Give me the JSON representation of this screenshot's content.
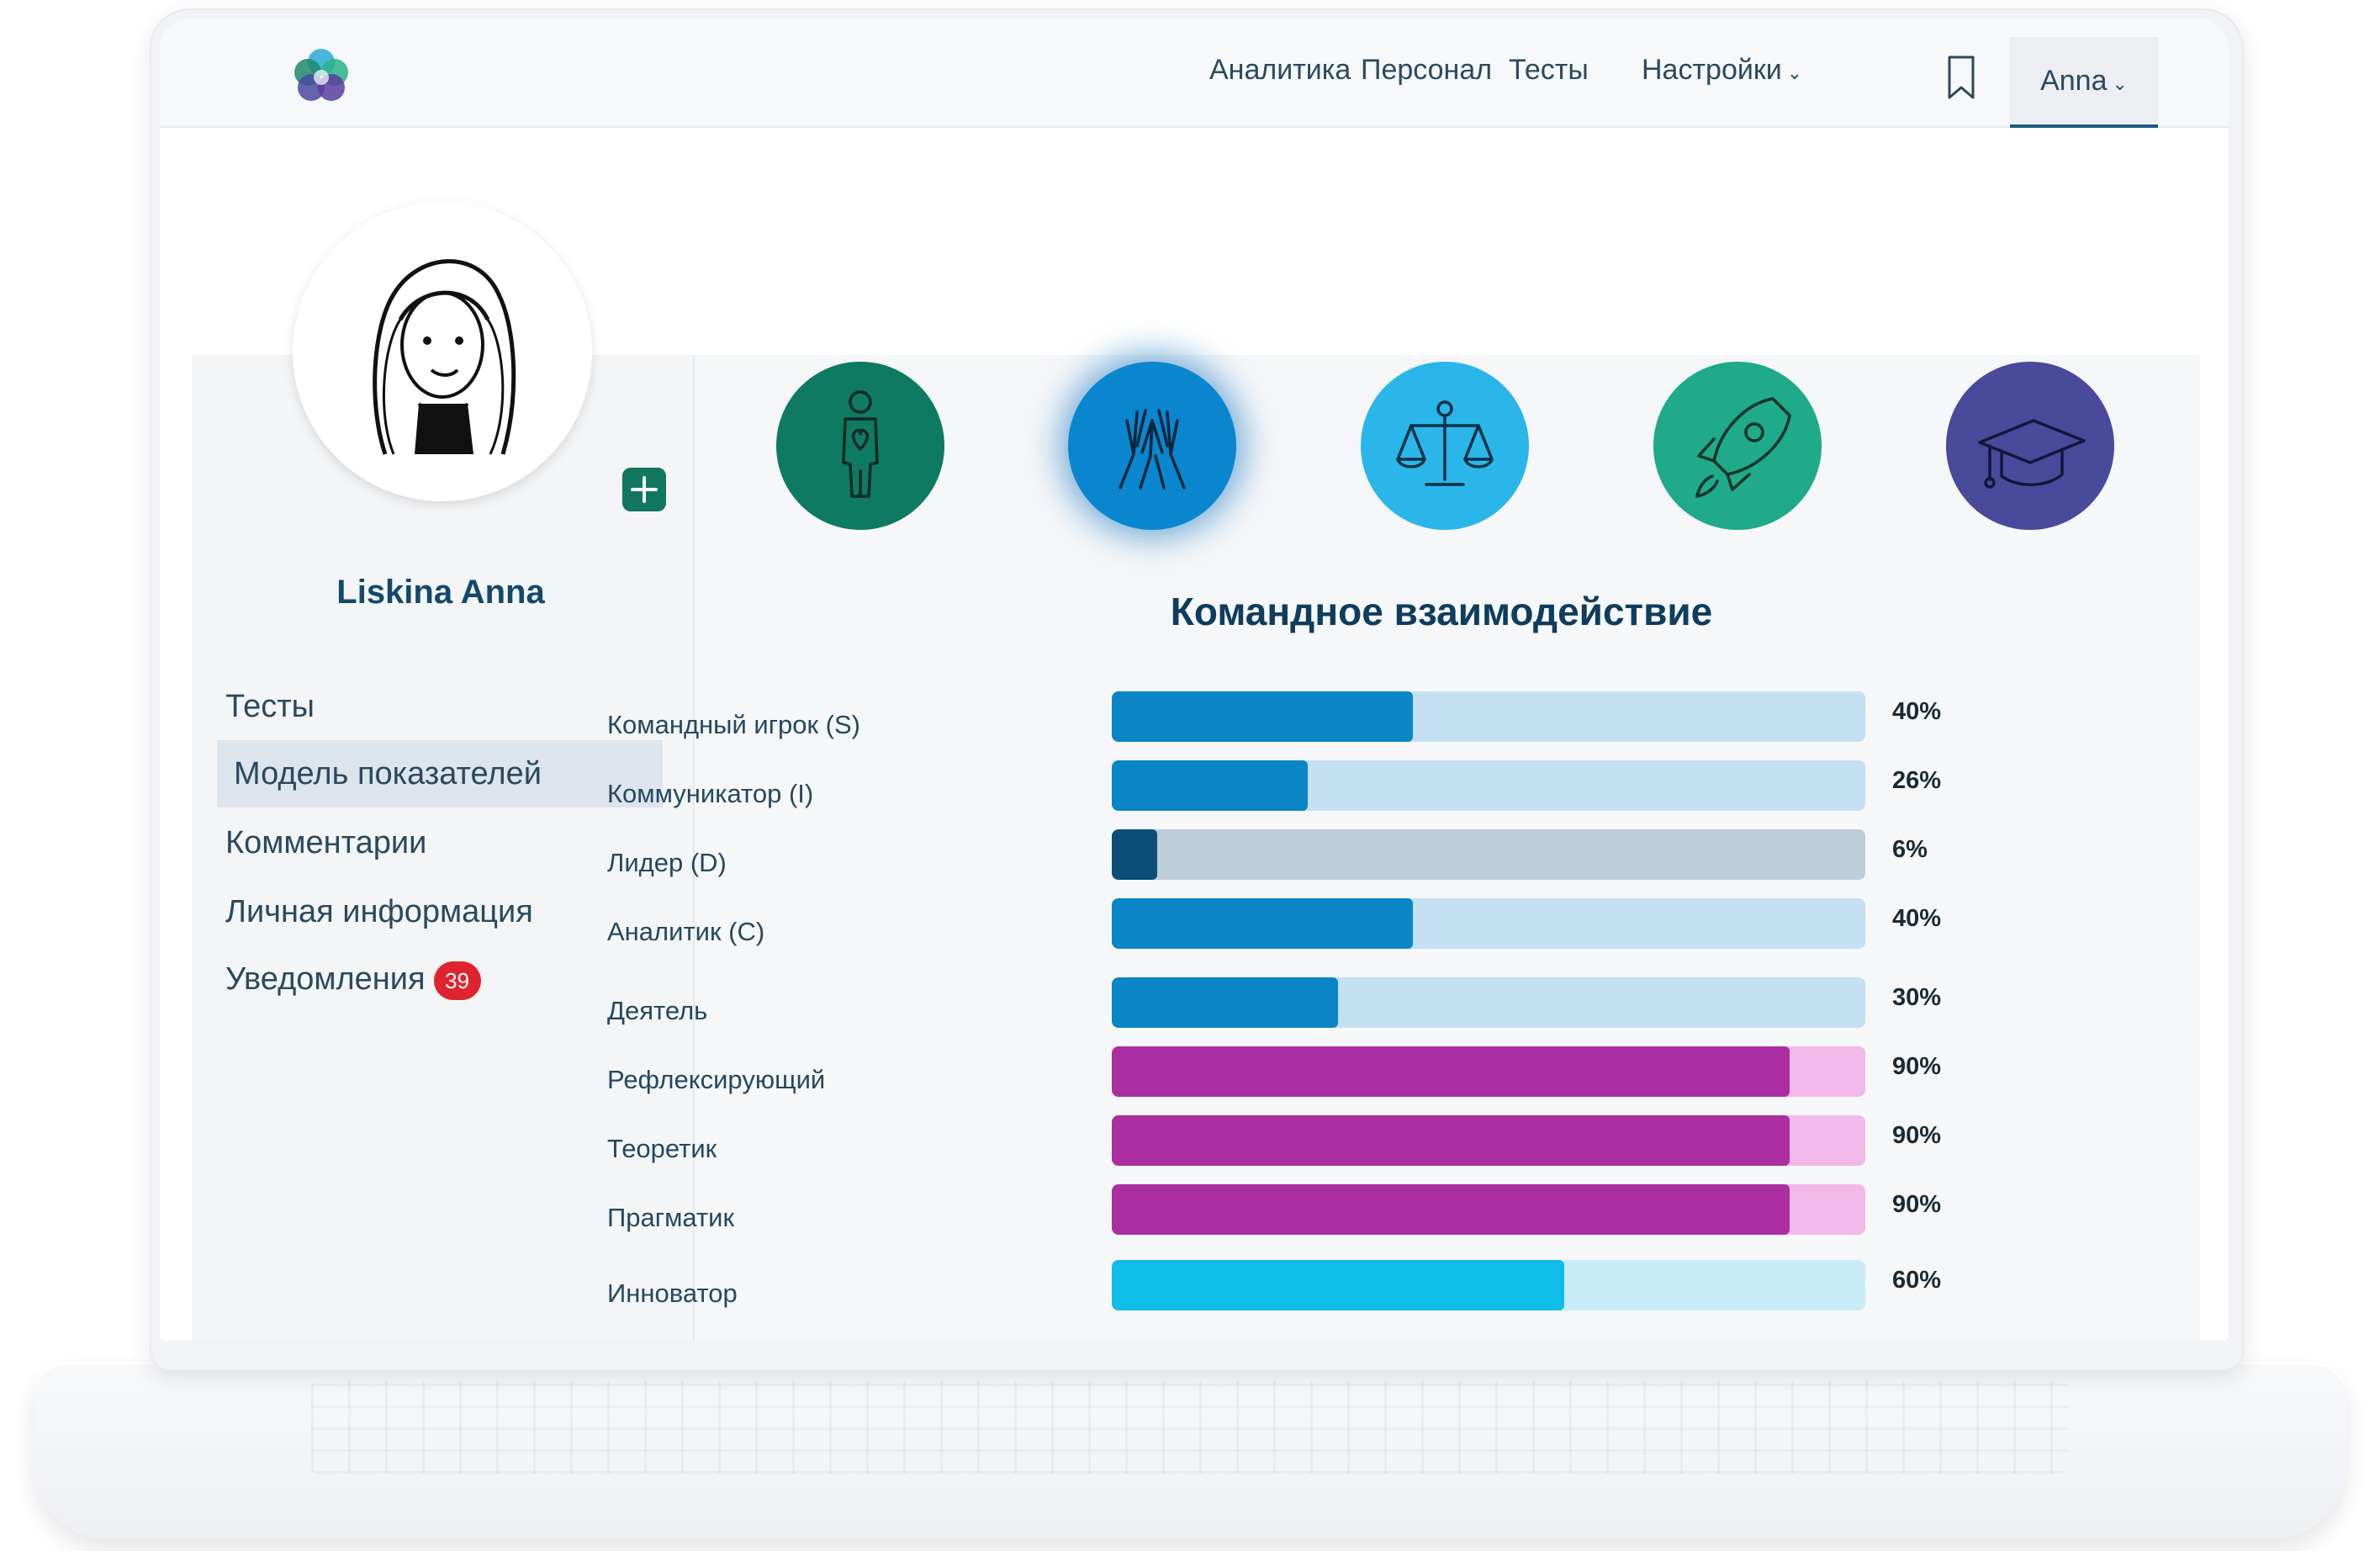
{
  "nav": {
    "items": [
      "Аналитика",
      "Персонал",
      "Тесты",
      "Настройки"
    ],
    "settings_chevron": "⌄",
    "user_label": "Anna",
    "user_chevron": "⌄"
  },
  "profile": {
    "name": "Liskina Anna"
  },
  "sidebar": {
    "items": [
      {
        "label": "Тесты",
        "active": false
      },
      {
        "label": "Модель показателей",
        "active": true
      },
      {
        "label": "Комментарии",
        "active": false
      },
      {
        "label": "Личная информация",
        "active": false
      },
      {
        "label": "Уведомления",
        "active": false,
        "badge": "39"
      }
    ]
  },
  "categories": [
    {
      "icon": "person-heart-icon",
      "color": "#0f7a62",
      "selected": false
    },
    {
      "icon": "high-five-icon",
      "color": "#0a86cf",
      "selected": true
    },
    {
      "icon": "scales-icon",
      "color": "#2bb6ea",
      "selected": false
    },
    {
      "icon": "rocket-icon",
      "color": "#1faa8a",
      "selected": false
    },
    {
      "icon": "graduation-cap-icon",
      "color": "#4a4a9c",
      "selected": false
    }
  ],
  "section": {
    "title": "Командное взаимодействие"
  },
  "metrics": [
    {
      "label": "Командный игрок (S)",
      "value": 40,
      "display": "40%",
      "fill": "#0a86c6",
      "track": "#c4e0f2"
    },
    {
      "label": "Коммуникатор (I)",
      "value": 26,
      "display": "26%",
      "fill": "#0a86c6",
      "track": "#c4e0f2"
    },
    {
      "label": "Лидер (D)",
      "value": 6,
      "display": "6%",
      "fill": "#0b4f78",
      "track": "#bccdd9"
    },
    {
      "label": "Аналитик (C)",
      "value": 40,
      "display": "40%",
      "fill": "#0a86c6",
      "track": "#c4e0f2"
    },
    {
      "label": "Деятель",
      "value": 30,
      "display": "30%",
      "fill": "#0a86c6",
      "track": "#c4e0f2"
    },
    {
      "label": "Рефлексирующий",
      "value": 90,
      "display": "90%",
      "fill": "#ab2fa0",
      "track": "#f2b8e9"
    },
    {
      "label": "Теоретик",
      "value": 90,
      "display": "90%",
      "fill": "#ab2fa0",
      "track": "#f2b8e9"
    },
    {
      "label": "Прагматик",
      "value": 90,
      "display": "90%",
      "fill": "#ab2fa0",
      "track": "#f2b8e9"
    },
    {
      "label": "Инноватор",
      "value": 60,
      "display": "60%",
      "fill": "#10bde8",
      "track": "#c8ecf6"
    }
  ]
}
